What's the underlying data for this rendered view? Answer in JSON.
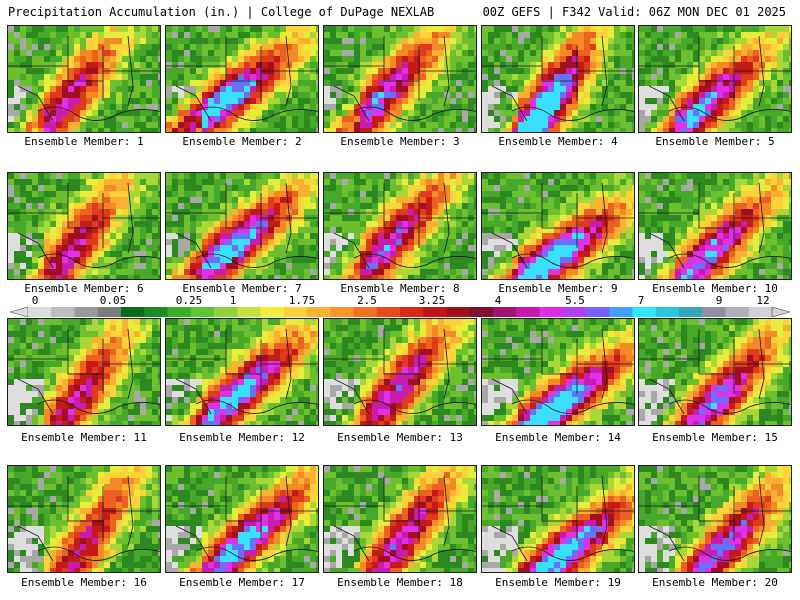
{
  "header": {
    "title": "Precipitation Accumulation (in.) | College of DuPage NEXLAB",
    "run_info": "00Z GEFS | F342 Valid: 06Z MON DEC 01 2025"
  },
  "colorbar": {
    "labels": [
      "0",
      "0.05",
      "0.25",
      "1",
      "1.75",
      "2.5",
      "3.25",
      "4",
      "5.5",
      "7",
      "9",
      "12"
    ],
    "colors": [
      "#dcdcdc",
      "#bdbdbd",
      "#9a9a9a",
      "#7c7c7c",
      "#0d6b18",
      "#1f8c22",
      "#3cae2c",
      "#5fc433",
      "#8fd23a",
      "#c4e23a",
      "#f2ef3a",
      "#fcd23a",
      "#fbb430",
      "#f89428",
      "#f07020",
      "#e84a1c",
      "#d8281a",
      "#c01418",
      "#a0101c",
      "#80102c",
      "#a01470",
      "#c818b0",
      "#e02ae4",
      "#b040f0",
      "#7a5ef8",
      "#40a0fc",
      "#30e8fc",
      "#28c8d8",
      "#30a8b8",
      "#9090a0",
      "#b0b0b8",
      "#d0d0d8"
    ]
  },
  "panels": [
    {
      "label": "Ensemble Member: 1"
    },
    {
      "label": "Ensemble Member: 2"
    },
    {
      "label": "Ensemble Member: 3"
    },
    {
      "label": "Ensemble Member: 4"
    },
    {
      "label": "Ensemble Member: 5"
    },
    {
      "label": "Ensemble Member: 6"
    },
    {
      "label": "Ensemble Member: 7"
    },
    {
      "label": "Ensemble Member: 8"
    },
    {
      "label": "Ensemble Member: 9"
    },
    {
      "label": "Ensemble Member: 10"
    },
    {
      "label": "Ensemble Member: 11"
    },
    {
      "label": "Ensemble Member: 12"
    },
    {
      "label": "Ensemble Member: 13"
    },
    {
      "label": "Ensemble Member: 14"
    },
    {
      "label": "Ensemble Member: 15"
    },
    {
      "label": "Ensemble Member: 16"
    },
    {
      "label": "Ensemble Member: 17"
    },
    {
      "label": "Ensemble Member: 18"
    },
    {
      "label": "Ensemble Member: 19"
    },
    {
      "label": "Ensemble Member: 20"
    }
  ]
}
